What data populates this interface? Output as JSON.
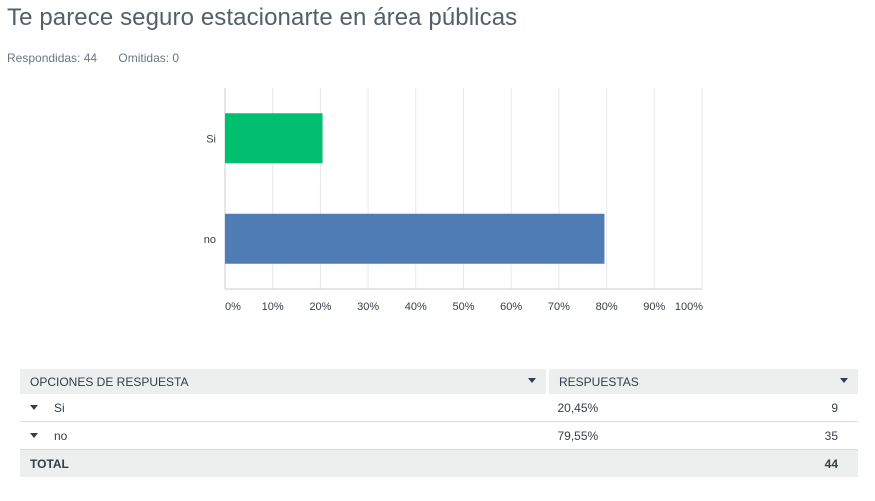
{
  "question": {
    "title": "Te parece seguro estacionarte en área públicas",
    "answered_label": "Respondidas: 44",
    "skipped_label": "Omitidas: 0"
  },
  "chart_data": {
    "type": "bar",
    "orientation": "horizontal",
    "categories": [
      "Si",
      "no"
    ],
    "values": [
      20.45,
      79.55
    ],
    "unit": "%",
    "xlim": [
      0,
      100
    ],
    "x_ticks": [
      "0%",
      "10%",
      "20%",
      "30%",
      "40%",
      "50%",
      "60%",
      "70%",
      "80%",
      "90%",
      "100%"
    ],
    "grid": true,
    "legend": "none",
    "colors": [
      "#00bf6f",
      "#507cb6"
    ]
  },
  "table": {
    "headers": [
      "OPCIONES DE RESPUESTA",
      "RESPUESTAS"
    ],
    "rows": [
      {
        "option": "Si",
        "percent": "20,45%",
        "count": "9"
      },
      {
        "option": "no",
        "percent": "79,55%",
        "count": "35"
      }
    ],
    "total_label": "TOTAL",
    "total_count": "44"
  }
}
